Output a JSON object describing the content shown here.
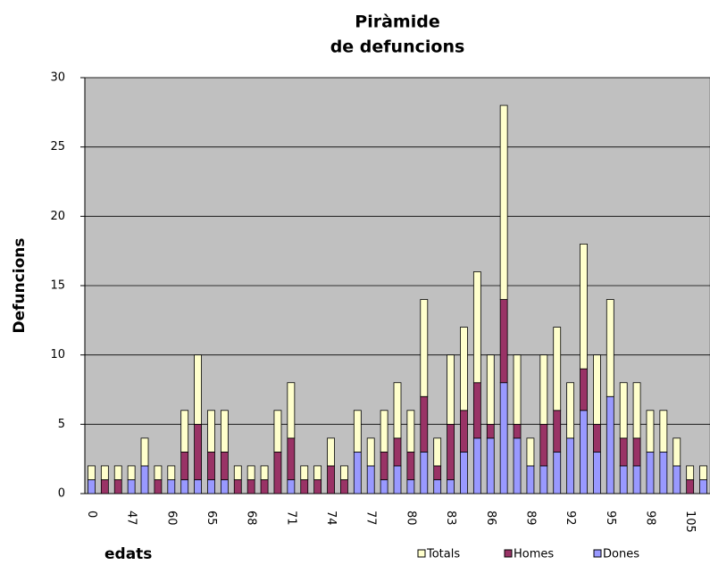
{
  "chart_data": {
    "type": "stacked_bar",
    "title": [
      "Piràmide",
      "de defuncions"
    ],
    "y_label": "Defuncions",
    "x_label": "edats",
    "categories": [
      "0",
      null,
      null,
      "47",
      null,
      null,
      "60",
      null,
      null,
      "65",
      null,
      null,
      "68",
      null,
      null,
      "71",
      null,
      null,
      "74",
      null,
      null,
      "77",
      null,
      null,
      "80",
      null,
      null,
      "83",
      null,
      null,
      "86",
      null,
      null,
      "89",
      null,
      null,
      "92",
      null,
      null,
      "95",
      null,
      null,
      "98",
      null,
      null,
      "105",
      null
    ],
    "series": [
      {
        "name": "Dones",
        "color": "#9999ff",
        "values": [
          1,
          0,
          0,
          1,
          2,
          0,
          1,
          1,
          1,
          1,
          1,
          0,
          0,
          0,
          0,
          1,
          0,
          0,
          0,
          0,
          3,
          2,
          1,
          2,
          1,
          3,
          1,
          1,
          3,
          4,
          4,
          8,
          4,
          2,
          2,
          3,
          4,
          6,
          3,
          7,
          2,
          2,
          3,
          3,
          2,
          0,
          1
        ]
      },
      {
        "name": "Homes",
        "color": "#993366",
        "values": [
          0,
          1,
          1,
          0,
          0,
          1,
          0,
          2,
          4,
          2,
          2,
          1,
          1,
          1,
          3,
          3,
          1,
          1,
          2,
          1,
          0,
          0,
          2,
          2,
          2,
          4,
          1,
          4,
          3,
          4,
          1,
          6,
          1,
          0,
          3,
          3,
          0,
          3,
          2,
          0,
          2,
          2,
          0,
          0,
          0,
          1,
          0
        ]
      },
      {
        "name": "Totals",
        "color": "#ffffcc",
        "values": [
          1,
          1,
          1,
          1,
          2,
          1,
          1,
          3,
          5,
          3,
          3,
          1,
          1,
          1,
          3,
          4,
          1,
          1,
          2,
          1,
          3,
          2,
          3,
          4,
          3,
          7,
          2,
          5,
          6,
          8,
          5,
          14,
          5,
          2,
          5,
          6,
          4,
          9,
          5,
          7,
          4,
          4,
          3,
          3,
          2,
          1,
          1
        ]
      }
    ],
    "ylim": [
      0,
      30
    ],
    "yticks": [
      0,
      5,
      10,
      15,
      20,
      25,
      30
    ],
    "grid": true,
    "plot_color": "#c0c0c0"
  }
}
